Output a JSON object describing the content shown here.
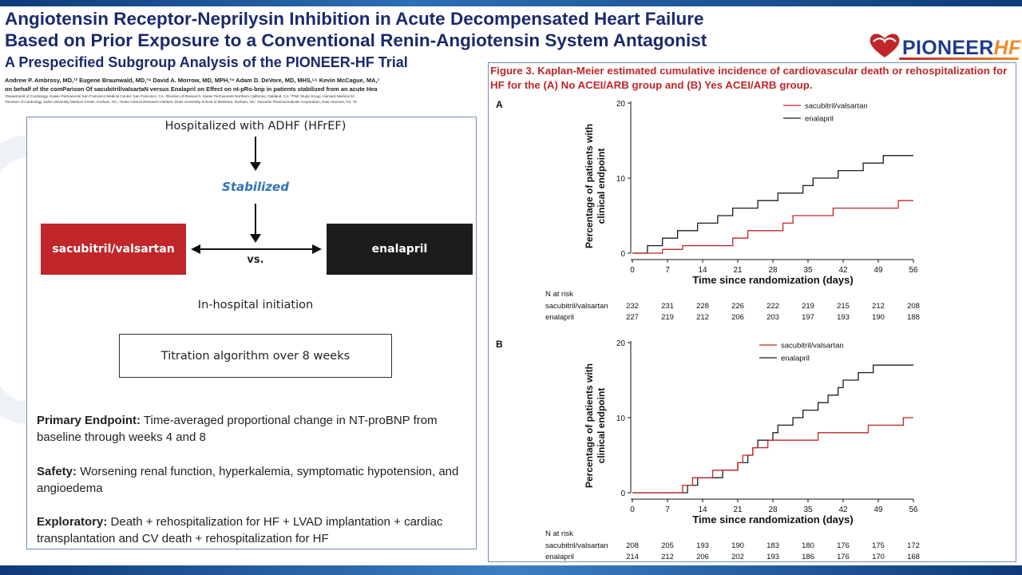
{
  "header": {
    "title_line1": "Angiotensin Receptor-Neprilysin Inhibition in Acute Decompensated Heart Failure",
    "title_line2": "Based on Prior Exposure to a Conventional Renin-Angiotensin System Antagonist",
    "subtitle": "A Prespecified Subgroup Analysis of the PIONEER-HF Trial",
    "authors_line1": "Andrew P. Ambrosy, MD,¹² Eugene Braunwald, MD,³⁴ David A. Morrow, MD, MPH,³⁴ Adam D. DeVore, MD, MHS,⁵⁶ Kevin McCague, MA,⁷",
    "authors_line2": "on behalf of the comParison Of sacubitril/valsartaN versus Enalapril on Effect on nt-pRo-bnp in patients stabilized from an acute Hea",
    "affil_line1": "¹Department of Cardiology, Kaiser Permanente San Francisco Medical Center, San Francisco, CA; ²Division of Research, Kaiser Permanente Northern California, Oakland, CA; ³TIMI Study Group, Harvard Medical Sc",
    "affil_line2": "⁵Division of Cardiology, Duke University Medical Center, Durham, NC; ⁶Duke Clinical Research Institute, Duke University School of Medicine, Durham, NC; ⁷Novartis Pharmaceuticals Corporation, East Hanover, NJ; ⁸D"
  },
  "logo": {
    "text_main": "PIONEER",
    "text_hf": "HF",
    "icon": "heart-logo-icon"
  },
  "design": {
    "hospitalized": "Hospitalized with ADHF (HFrEF)",
    "stabilized": "Stabilized",
    "arm_left": "sacubitril/valsartan",
    "arm_right": "enalapril",
    "vs": "vs.",
    "in_hospital": "In-hospital initiation",
    "titration": "Titration algorithm over 8 weeks",
    "primary_label": "Primary Endpoint:",
    "primary_text": " Time-averaged proportional change in NT-proBNP from baseline through weeks 4 and 8",
    "safety_label": "Safety:",
    "safety_text": " Worsening renal function, hyperkalemia, symptomatic hypotension, and angioedema",
    "exploratory_label": "Exploratory:",
    "exploratory_text": " Death + rehospitalization for HF + LVAD implantation + cardiac transplantation and CV death + rehospitalization for HF",
    "colors": {
      "sacubitril": "#c0262a",
      "enalapril": "#1c1c1c",
      "stabilized": "#2e74b5"
    }
  },
  "figure": {
    "caption": "Figure 3. Kaplan-Meier estimated cumulative incidence of cardiovascular death or rehospitalization for HF for the (A) No ACEI/ARB group and (B) Yes ACEI/ARB group."
  },
  "chart_data": [
    {
      "type": "line",
      "step": true,
      "panel_label": "A",
      "xlabel": "Time since randomization (days)",
      "ylabel": "Percentage of patients with clinical endpoint",
      "xticks": [
        0,
        7,
        14,
        21,
        28,
        35,
        42,
        49,
        56
      ],
      "yticks": [
        0,
        10,
        20
      ],
      "xlim": [
        0,
        56
      ],
      "ylim": [
        0,
        20
      ],
      "legend_position": "top-right",
      "series": [
        {
          "name": "sacubitril/valsartan",
          "color": "#c0262a",
          "points": [
            [
              0,
              0
            ],
            [
              6,
              0
            ],
            [
              6,
              0.5
            ],
            [
              10,
              0.5
            ],
            [
              10,
              1
            ],
            [
              20,
              1
            ],
            [
              20,
              2
            ],
            [
              23,
              2
            ],
            [
              23,
              3
            ],
            [
              30,
              3
            ],
            [
              30,
              4
            ],
            [
              32,
              4
            ],
            [
              32,
              5
            ],
            [
              40,
              5
            ],
            [
              40,
              6
            ],
            [
              53,
              6
            ],
            [
              53,
              7
            ],
            [
              56,
              7
            ]
          ]
        },
        {
          "name": "enalapril",
          "color": "#1c1c1c",
          "points": [
            [
              0,
              0
            ],
            [
              3,
              0
            ],
            [
              3,
              1
            ],
            [
              6,
              1
            ],
            [
              6,
              2
            ],
            [
              9,
              2
            ],
            [
              9,
              3
            ],
            [
              13,
              3
            ],
            [
              13,
              4
            ],
            [
              17,
              4
            ],
            [
              17,
              5
            ],
            [
              20,
              5
            ],
            [
              20,
              6
            ],
            [
              25,
              6
            ],
            [
              25,
              7
            ],
            [
              29,
              7
            ],
            [
              29,
              8
            ],
            [
              34,
              8
            ],
            [
              34,
              9
            ],
            [
              36,
              9
            ],
            [
              36,
              10
            ],
            [
              41,
              10
            ],
            [
              41,
              11
            ],
            [
              46,
              11
            ],
            [
              46,
              12
            ],
            [
              50,
              12
            ],
            [
              50,
              13
            ],
            [
              56,
              13
            ]
          ]
        }
      ],
      "at_risk": {
        "title": "N at risk",
        "rows": [
          {
            "name": "sacubitril/valsartan",
            "values": [
              232,
              231,
              228,
              226,
              222,
              219,
              215,
              212,
              208
            ]
          },
          {
            "name": "enalapril",
            "values": [
              227,
              219,
              212,
              206,
              203,
              197,
              193,
              190,
              188
            ]
          }
        ]
      }
    },
    {
      "type": "line",
      "step": true,
      "panel_label": "B",
      "xlabel": "Time since randomization (days)",
      "ylabel": "Percentage of patients with clinical endpoint",
      "xticks": [
        0,
        7,
        14,
        21,
        28,
        35,
        42,
        49,
        56
      ],
      "yticks": [
        0,
        10,
        20
      ],
      "xlim": [
        0,
        56
      ],
      "ylim": [
        0,
        20
      ],
      "legend_position": "top-right",
      "series": [
        {
          "name": "sacubitril/valsartan",
          "color": "#c0262a",
          "points": [
            [
              0,
              0
            ],
            [
              10,
              0
            ],
            [
              10,
              1
            ],
            [
              12,
              1
            ],
            [
              12,
              2
            ],
            [
              16,
              2
            ],
            [
              16,
              3
            ],
            [
              21,
              3
            ],
            [
              21,
              4
            ],
            [
              22,
              4
            ],
            [
              22,
              5
            ],
            [
              24,
              5
            ],
            [
              24,
              6
            ],
            [
              27,
              6
            ],
            [
              27,
              7
            ],
            [
              37,
              7
            ],
            [
              37,
              8
            ],
            [
              47,
              8
            ],
            [
              47,
              9
            ],
            [
              54,
              9
            ],
            [
              54,
              10
            ],
            [
              56,
              10
            ]
          ]
        },
        {
          "name": "enalapril",
          "color": "#1c1c1c",
          "points": [
            [
              0,
              0
            ],
            [
              11,
              0
            ],
            [
              11,
              1
            ],
            [
              13,
              1
            ],
            [
              13,
              2
            ],
            [
              18,
              2
            ],
            [
              18,
              3
            ],
            [
              21,
              3
            ],
            [
              21,
              4
            ],
            [
              23,
              4
            ],
            [
              23,
              5
            ],
            [
              24,
              5
            ],
            [
              24,
              6
            ],
            [
              25,
              6
            ],
            [
              25,
              7
            ],
            [
              28,
              7
            ],
            [
              28,
              8
            ],
            [
              29,
              8
            ],
            [
              29,
              9
            ],
            [
              32,
              9
            ],
            [
              32,
              10
            ],
            [
              34,
              10
            ],
            [
              34,
              11
            ],
            [
              37,
              11
            ],
            [
              37,
              12
            ],
            [
              39,
              12
            ],
            [
              39,
              13
            ],
            [
              41,
              13
            ],
            [
              41,
              14
            ],
            [
              42,
              14
            ],
            [
              42,
              15
            ],
            [
              45,
              15
            ],
            [
              45,
              16
            ],
            [
              48,
              16
            ],
            [
              48,
              17
            ],
            [
              56,
              17
            ]
          ]
        }
      ],
      "at_risk": {
        "title": "N at risk",
        "rows": [
          {
            "name": "sacubitril/valsartan",
            "values": [
              208,
              205,
              193,
              190,
              183,
              180,
              176,
              175,
              172
            ]
          },
          {
            "name": "enalapril",
            "values": [
              214,
              212,
              206,
              202,
              193,
              186,
              176,
              170,
              168
            ]
          }
        ]
      }
    }
  ]
}
